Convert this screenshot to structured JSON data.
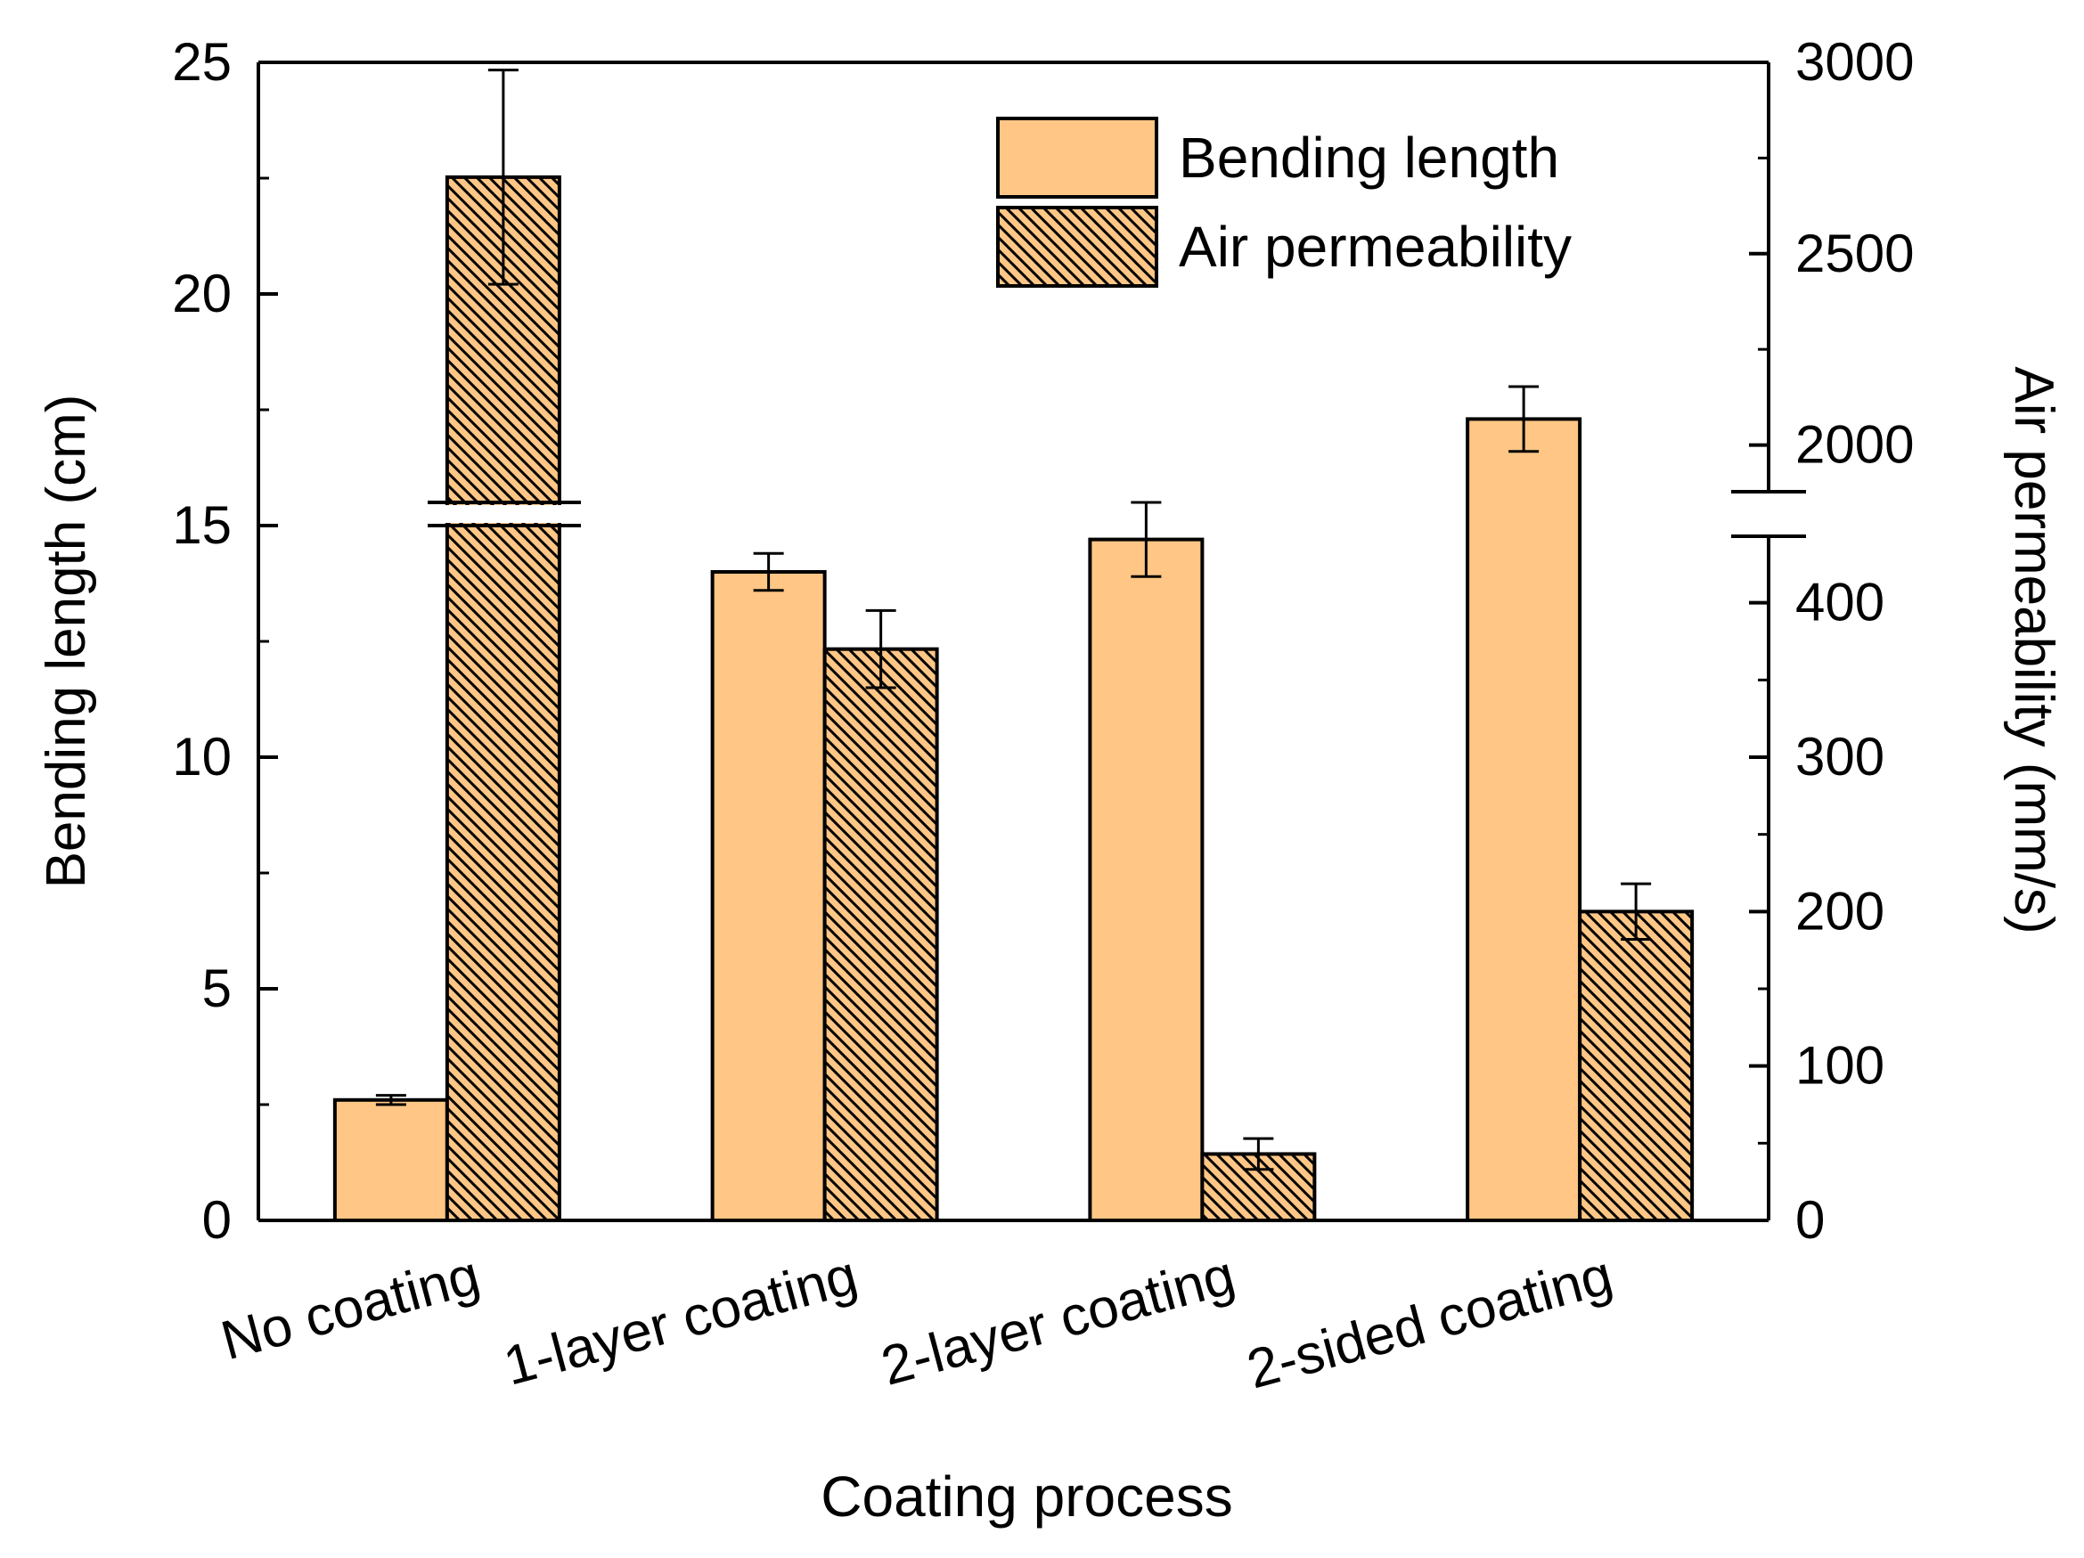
{
  "chart_data": {
    "type": "bar",
    "title": "",
    "xlabel": "Coating process",
    "ylabel_left": "Bending length (cm)",
    "ylabel_right": "Air permeability (mm/s)",
    "categories": [
      "No coating",
      "1-layer coating",
      "2-layer coating",
      "2-sided coating"
    ],
    "series": [
      {
        "name": "Bending length",
        "axis": "left",
        "pattern": "solid",
        "values": [
          2.6,
          14.0,
          14.7,
          17.3
        ],
        "errors": [
          0.1,
          0.4,
          0.8,
          0.7
        ]
      },
      {
        "name": "Air permeability",
        "axis": "right",
        "pattern": "hatched",
        "values": [
          2700,
          370,
          43,
          200
        ],
        "errors": [
          280,
          25,
          10,
          18
        ]
      }
    ],
    "left_axis": {
      "ylim": [
        0,
        25
      ],
      "ticks": [
        0,
        5,
        10,
        15,
        20,
        25
      ]
    },
    "right_axis": {
      "broken": true,
      "lower_segment": {
        "range": [
          0,
          450
        ],
        "ticks": [
          0,
          100,
          200,
          300,
          400
        ]
      },
      "upper_segment": {
        "range": [
          1850,
          3000
        ],
        "ticks": [
          2000,
          2500,
          3000
        ]
      }
    },
    "legend": {
      "position": "top-right",
      "entries": [
        "Bending length",
        "Air permeability"
      ]
    },
    "colors": {
      "bar_fill": "#FFC685",
      "stroke": "#000000",
      "hatch": "#000000"
    },
    "grid": false
  }
}
